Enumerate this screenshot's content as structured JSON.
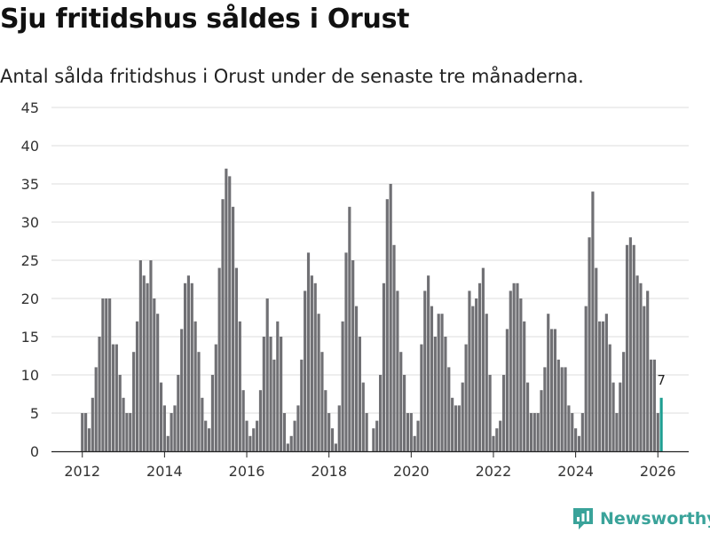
{
  "title": "Sju fritidshus såldes i Orust",
  "subtitle": "Antal sålda fritidshus i Orust under de senaste tre månaderna.",
  "brand": "Newsworthy",
  "colors": {
    "bar": "#707074",
    "highlight": "#1f9e92",
    "grid": "#dddddd",
    "axis": "#222222",
    "brand": "#3aa39a"
  },
  "chart_data": {
    "type": "bar",
    "ylim": [
      0,
      45
    ],
    "y_ticks": [
      0,
      5,
      10,
      15,
      20,
      25,
      30,
      35,
      40,
      45
    ],
    "x_tick_labels": [
      "2012",
      "2014",
      "2016",
      "2018",
      "2020",
      "2022",
      "2024",
      "2026"
    ],
    "x_range": [
      2011.25,
      2026.75
    ],
    "start_year": 2012,
    "start_month": 1,
    "highlight_label": "7",
    "values": [
      5,
      5,
      3,
      7,
      11,
      15,
      20,
      20,
      20,
      14,
      14,
      10,
      7,
      5,
      5,
      13,
      17,
      25,
      23,
      22,
      25,
      20,
      18,
      9,
      6,
      2,
      5,
      6,
      10,
      16,
      22,
      23,
      22,
      17,
      13,
      7,
      4,
      3,
      10,
      14,
      24,
      33,
      37,
      36,
      32,
      24,
      17,
      8,
      4,
      2,
      3,
      4,
      8,
      15,
      20,
      15,
      12,
      17,
      15,
      5,
      1,
      2,
      4,
      6,
      12,
      21,
      26,
      23,
      22,
      18,
      13,
      8,
      5,
      3,
      1,
      6,
      17,
      26,
      32,
      25,
      19,
      15,
      9,
      5,
      0,
      3,
      4,
      10,
      22,
      33,
      35,
      27,
      21,
      13,
      10,
      5,
      5,
      2,
      4,
      14,
      21,
      23,
      19,
      15,
      18,
      18,
      15,
      11,
      7,
      6,
      6,
      9,
      14,
      21,
      19,
      20,
      22,
      24,
      18,
      10,
      2,
      3,
      4,
      10,
      16,
      21,
      22,
      22,
      20,
      17,
      9,
      5,
      5,
      5,
      8,
      11,
      18,
      16,
      16,
      12,
      11,
      11,
      6,
      5,
      3,
      2,
      5,
      19,
      28,
      34,
      24,
      17,
      17,
      18,
      14,
      9,
      5,
      9,
      13,
      27,
      28,
      27,
      23,
      22,
      19,
      21,
      12,
      12,
      5,
      7
    ]
  }
}
